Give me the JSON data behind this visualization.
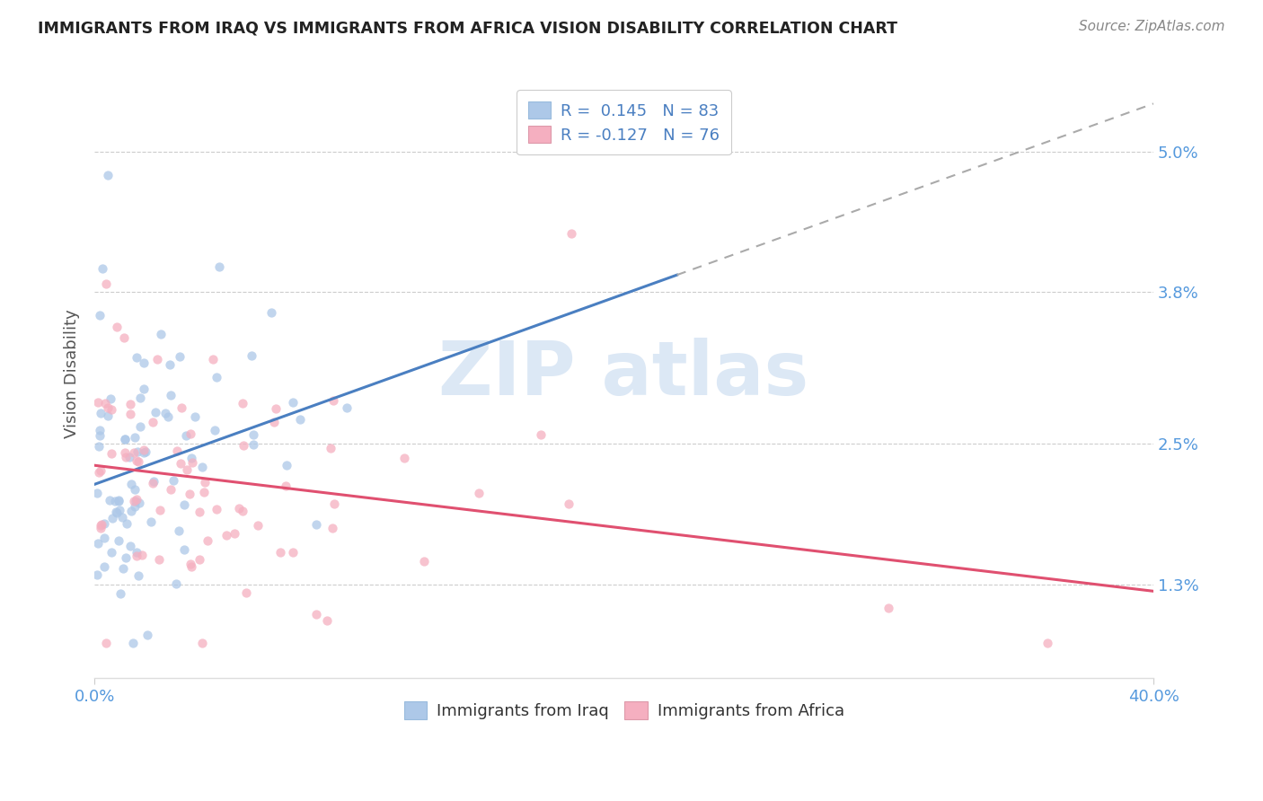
{
  "title": "IMMIGRANTS FROM IRAQ VS IMMIGRANTS FROM AFRICA VISION DISABILITY CORRELATION CHART",
  "source": "Source: ZipAtlas.com",
  "ylabel": "Vision Disability",
  "yticks": [
    "1.3%",
    "2.5%",
    "3.8%",
    "5.0%"
  ],
  "ytick_vals": [
    0.013,
    0.025,
    0.038,
    0.05
  ],
  "xlim": [
    0.0,
    0.4
  ],
  "ylim": [
    0.005,
    0.057
  ],
  "iraq_R": 0.145,
  "iraq_N": 83,
  "africa_R": -0.127,
  "africa_N": 76,
  "iraq_color": "#adc8e8",
  "africa_color": "#f5afc0",
  "iraq_line_color": "#4a7fc1",
  "africa_line_color": "#e05070",
  "iraq_line_solid_end": 0.22,
  "background_color": "#ffffff",
  "legend_label_iraq": "Immigrants from Iraq",
  "legend_label_africa": "Immigrants from Africa",
  "tick_color": "#5599dd",
  "watermark_text": "ZIP atlas",
  "watermark_color": "#dce8f5",
  "legend_text_color": "#4a7fc1",
  "legend_R_color": "#4a7fc1"
}
